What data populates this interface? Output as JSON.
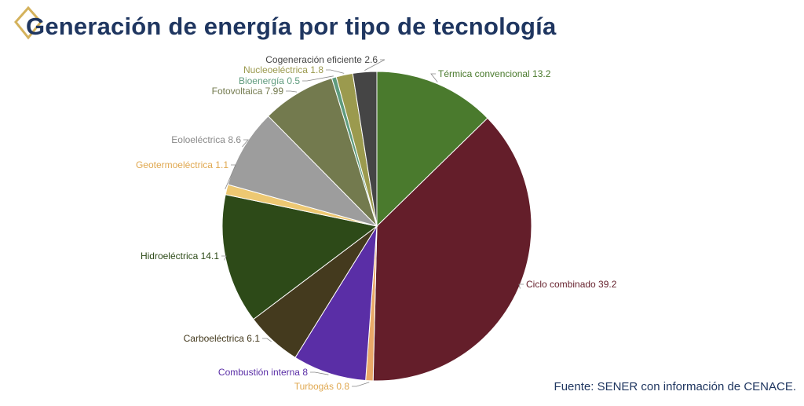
{
  "page": {
    "title": "Generación de energía por tipo de tecnología",
    "source": "Fuente: SENER con información de CENACE."
  },
  "colors": {
    "title": "#1f3660",
    "accent": "#d4b25c"
  },
  "chart_data": {
    "type": "pie",
    "title": "",
    "slices": [
      {
        "label": "Térmica convencional",
        "value": 13.2,
        "value_label": "13.2",
        "color": "#4a7a2d"
      },
      {
        "label": "Ciclo combinado",
        "value": 39.2,
        "value_label": "39.2",
        "color": "#641e2a"
      },
      {
        "label": "Turbogás",
        "value": 0.8,
        "value_label": "0.8",
        "color": "#e9a968"
      },
      {
        "label": "Combustión interna",
        "value": 8,
        "value_label": "8",
        "color": "#5a2ea6"
      },
      {
        "label": "Carboeléctrica",
        "value": 6.1,
        "value_label": "6.1",
        "color": "#443a1e"
      },
      {
        "label": "Hidroeléctrica",
        "value": 14.1,
        "value_label": "14.1",
        "color": "#2d4a18"
      },
      {
        "label": "Geotermoeléctrica",
        "value": 1.1,
        "value_label": "1.1",
        "color": "#edc872"
      },
      {
        "label": "Eoloeléctrica",
        "value": 8.6,
        "value_label": "8.6",
        "color": "#9d9d9d"
      },
      {
        "label": "Fotovoltaica",
        "value": 7.99,
        "value_label": "7.99",
        "color": "#737a4e"
      },
      {
        "label": "Bioenergía",
        "value": 0.5,
        "value_label": "0.5",
        "color": "#5f9b7e"
      },
      {
        "label": "Nucleoeléctrica",
        "value": 1.8,
        "value_label": "1.8",
        "color": "#9b9a4e"
      },
      {
        "label": "Cogeneración eficiente",
        "value": 2.6,
        "value_label": "2.6",
        "color": "#454545"
      }
    ]
  }
}
